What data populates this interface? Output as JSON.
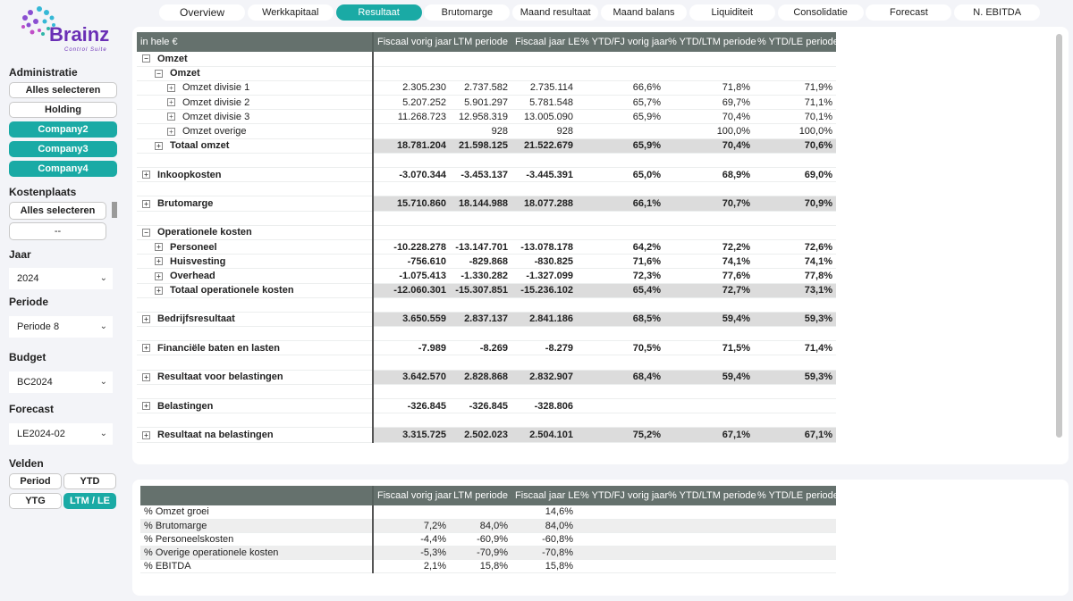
{
  "logo": {
    "name": "Brainz",
    "tagline": "Control Suite"
  },
  "tabs": [
    {
      "label": "Overview",
      "active": false
    },
    {
      "label": "Werkkapitaal",
      "active": false
    },
    {
      "label": "Resultaat",
      "active": true
    },
    {
      "label": "Brutomarge",
      "active": false
    },
    {
      "label": "Maand resultaat",
      "active": false
    },
    {
      "label": "Maand balans",
      "active": false
    },
    {
      "label": "Liquiditeit",
      "active": false
    },
    {
      "label": "Consolidatie",
      "active": false
    },
    {
      "label": "Forecast",
      "active": false
    },
    {
      "label": "N. EBITDA",
      "active": false
    }
  ],
  "sidebar": {
    "administratie": {
      "label": "Administratie",
      "items": [
        {
          "label": "Alles selecteren",
          "on": false
        },
        {
          "label": "Holding",
          "on": false
        },
        {
          "label": "Company2",
          "on": true
        },
        {
          "label": "Company3",
          "on": true
        },
        {
          "label": "Company4",
          "on": true
        }
      ]
    },
    "kostenplaats": {
      "label": "Kostenplaats",
      "items": [
        "Alles selecteren",
        "--"
      ]
    },
    "jaar": {
      "label": "Jaar",
      "value": "2024"
    },
    "periode": {
      "label": "Periode",
      "value": "Periode 8"
    },
    "budget": {
      "label": "Budget",
      "value": "BC2024"
    },
    "forecast": {
      "label": "Forecast",
      "value": "LE2024-02"
    },
    "velden": {
      "label": "Velden",
      "items": [
        {
          "label": "Period",
          "on": false
        },
        {
          "label": "YTD",
          "on": false
        },
        {
          "label": "YTG",
          "on": false
        },
        {
          "label": "LTM / LE",
          "on": true
        }
      ]
    }
  },
  "main_table": {
    "columns": [
      "in hele €",
      "Fiscaal vorig jaar",
      "LTM periode",
      "Fiscaal jaar LE",
      "% YTD/FJ vorig jaar",
      "% YTD/LTM periode",
      "% YTD/LE periode"
    ],
    "rows": [
      {
        "label": "Omzet",
        "level": 0,
        "icon": "minus",
        "bold": true,
        "shaded": false,
        "values": [
          "",
          "",
          "",
          "",
          "",
          ""
        ]
      },
      {
        "label": "Omzet",
        "level": 1,
        "icon": "minus",
        "bold": true,
        "shaded": false,
        "values": [
          "",
          "",
          "",
          "",
          "",
          ""
        ]
      },
      {
        "label": "Omzet divisie 1",
        "level": 2,
        "icon": "plus",
        "bold": false,
        "shaded": false,
        "values": [
          "2.305.230",
          "2.737.582",
          "2.735.114",
          "66,6%",
          "71,8%",
          "71,9%"
        ]
      },
      {
        "label": "Omzet divisie 2",
        "level": 2,
        "icon": "plus",
        "bold": false,
        "shaded": false,
        "values": [
          "5.207.252",
          "5.901.297",
          "5.781.548",
          "65,7%",
          "69,7%",
          "71,1%"
        ]
      },
      {
        "label": "Omzet divisie 3",
        "level": 2,
        "icon": "plus",
        "bold": false,
        "shaded": false,
        "values": [
          "11.268.723",
          "12.958.319",
          "13.005.090",
          "65,9%",
          "70,4%",
          "70,1%"
        ]
      },
      {
        "label": "Omzet overige",
        "level": 2,
        "icon": "plus",
        "bold": false,
        "shaded": false,
        "values": [
          "",
          "928",
          "928",
          "",
          "100,0%",
          "100,0%"
        ]
      },
      {
        "label": "Totaal omzet",
        "level": 1,
        "icon": "plus",
        "bold": true,
        "shaded": true,
        "values": [
          "18.781.204",
          "21.598.125",
          "21.522.679",
          "65,9%",
          "70,4%",
          "70,6%"
        ]
      },
      {
        "spacer": true
      },
      {
        "label": "Inkoopkosten",
        "level": 0,
        "icon": "plus",
        "bold": true,
        "shaded": false,
        "values": [
          "-3.070.344",
          "-3.453.137",
          "-3.445.391",
          "65,0%",
          "68,9%",
          "69,0%"
        ]
      },
      {
        "spacer": true
      },
      {
        "label": "Brutomarge",
        "level": 0,
        "icon": "plus",
        "bold": true,
        "shaded": true,
        "values": [
          "15.710.860",
          "18.144.988",
          "18.077.288",
          "66,1%",
          "70,7%",
          "70,9%"
        ]
      },
      {
        "spacer": true
      },
      {
        "label": "Operationele kosten",
        "level": 0,
        "icon": "minus",
        "bold": true,
        "shaded": false,
        "values": [
          "",
          "",
          "",
          "",
          "",
          ""
        ]
      },
      {
        "label": "Personeel",
        "level": 1,
        "icon": "plus",
        "bold": true,
        "shaded": false,
        "values": [
          "-10.228.278",
          "-13.147.701",
          "-13.078.178",
          "64,2%",
          "72,2%",
          "72,6%"
        ]
      },
      {
        "label": "Huisvesting",
        "level": 1,
        "icon": "plus",
        "bold": true,
        "shaded": false,
        "values": [
          "-756.610",
          "-829.868",
          "-830.825",
          "71,6%",
          "74,1%",
          "74,1%"
        ]
      },
      {
        "label": "Overhead",
        "level": 1,
        "icon": "plus",
        "bold": true,
        "shaded": false,
        "values": [
          "-1.075.413",
          "-1.330.282",
          "-1.327.099",
          "72,3%",
          "77,6%",
          "77,8%"
        ]
      },
      {
        "label": "Totaal operationele kosten",
        "level": 1,
        "icon": "plus",
        "bold": true,
        "shaded": true,
        "values": [
          "-12.060.301",
          "-15.307.851",
          "-15.236.102",
          "65,4%",
          "72,7%",
          "73,1%"
        ]
      },
      {
        "spacer": true
      },
      {
        "label": "Bedrijfsresultaat",
        "level": 0,
        "icon": "plus",
        "bold": true,
        "shaded": true,
        "values": [
          "3.650.559",
          "2.837.137",
          "2.841.186",
          "68,5%",
          "59,4%",
          "59,3%"
        ]
      },
      {
        "spacer": true
      },
      {
        "label": "Financiële baten en lasten",
        "level": 0,
        "icon": "plus",
        "bold": true,
        "shaded": false,
        "values": [
          "-7.989",
          "-8.269",
          "-8.279",
          "70,5%",
          "71,5%",
          "71,4%"
        ]
      },
      {
        "spacer": true
      },
      {
        "label": "Resultaat voor belastingen",
        "level": 0,
        "icon": "plus",
        "bold": true,
        "shaded": true,
        "values": [
          "3.642.570",
          "2.828.868",
          "2.832.907",
          "68,4%",
          "59,4%",
          "59,3%"
        ]
      },
      {
        "spacer": true
      },
      {
        "label": "Belastingen",
        "level": 0,
        "icon": "plus",
        "bold": true,
        "shaded": false,
        "values": [
          "-326.845",
          "-326.845",
          "-328.806",
          "",
          "",
          ""
        ]
      },
      {
        "spacer": true
      },
      {
        "label": "Resultaat na belastingen",
        "level": 0,
        "icon": "plus",
        "bold": true,
        "shaded": true,
        "values": [
          "3.315.725",
          "2.502.023",
          "2.504.101",
          "75,2%",
          "67,1%",
          "67,1%"
        ]
      }
    ]
  },
  "ratio_table": {
    "columns": [
      "",
      "Fiscaal vorig jaar",
      "LTM periode",
      "Fiscaal jaar LE",
      "% YTD/FJ vorig jaar",
      "% YTD/LTM periode",
      "% YTD/LE periode"
    ],
    "rows": [
      {
        "label": "% Omzet groei",
        "values": [
          "",
          "",
          "14,6%",
          "",
          "",
          ""
        ]
      },
      {
        "label": "% Brutomarge",
        "values": [
          "7,2%",
          "84,0%",
          "84,0%",
          "",
          "",
          ""
        ]
      },
      {
        "label": "% Personeelskosten",
        "values": [
          "-4,4%",
          "-60,9%",
          "-60,8%",
          "",
          "",
          ""
        ]
      },
      {
        "label": "% Overige operationele kosten",
        "values": [
          "-5,3%",
          "-70,9%",
          "-70,8%",
          "",
          "",
          ""
        ]
      },
      {
        "label": "% EBITDA",
        "values": [
          "2,1%",
          "15,8%",
          "15,8%",
          "",
          "",
          ""
        ]
      }
    ]
  }
}
